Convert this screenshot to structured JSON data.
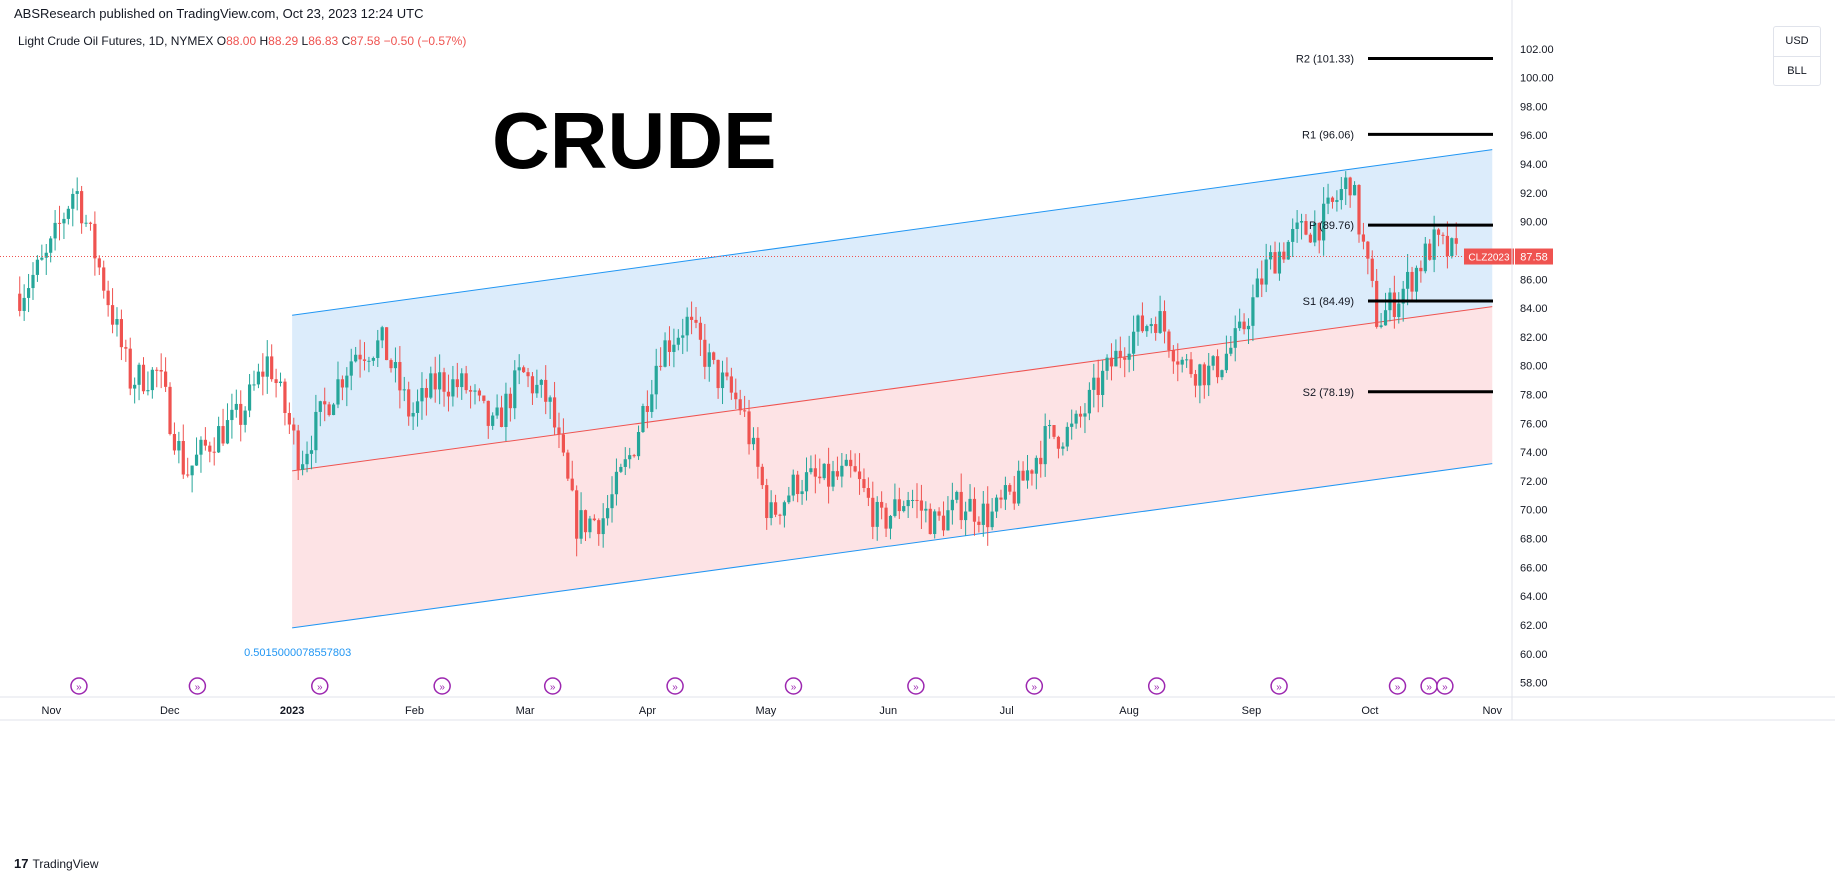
{
  "publisher_line": "ABSResearch published on TradingView.com, Oct 23, 2023 12:24 UTC",
  "symbol": {
    "name": "Light Crude Oil Futures, 1D, NYMEX",
    "o_label": "O",
    "o": "88.00",
    "h_label": "H",
    "h": "88.29",
    "l_label": "L",
    "l": "86.83",
    "c_label": "C",
    "c": "87.58",
    "change": "−0.50 (−0.57%)"
  },
  "units": {
    "currency": "USD",
    "unit": "BLL"
  },
  "footer": {
    "logo": "17",
    "brand": "TradingView"
  },
  "colors": {
    "up": "#26a69a",
    "down": "#ef5350",
    "channel_line": "#2196f3",
    "mid_line": "#ef5350",
    "upper_fill": "#dcecfb",
    "lower_fill": "#fde3e5",
    "event_icon": "#9c27b0",
    "pivot_line": "#000000"
  },
  "chart_data": {
    "type": "candlestick",
    "title": "CRUDE",
    "ylabel": "",
    "ylim": [
      57,
      104
    ],
    "y_ticks": [
      58,
      60,
      62,
      64,
      66,
      68,
      70,
      72,
      74,
      76,
      78,
      80,
      82,
      84,
      86,
      88,
      90,
      92,
      94,
      96,
      98,
      100,
      102
    ],
    "x_ticks": [
      "Nov",
      "Dec",
      "2023",
      "Feb",
      "Mar",
      "Apr",
      "May",
      "Jun",
      "Jul",
      "Aug",
      "Sep",
      "Oct",
      "Nov"
    ],
    "last_price": {
      "symbol": "CLZ2023",
      "value": "87.58"
    },
    "channel": {
      "start_label": "0.5015000078557803",
      "upper": [
        [
          "2023-01",
          83.5
        ],
        [
          "2023-11",
          95.0
        ]
      ],
      "middle": [
        [
          "2023-01",
          72.7
        ],
        [
          "2023-11",
          84.1
        ]
      ],
      "lower": [
        [
          "2023-01",
          61.8
        ],
        [
          "2023-11",
          73.2
        ]
      ]
    },
    "pivots": [
      {
        "label": "R2 (101.33)",
        "value": 101.33
      },
      {
        "label": "R1 (96.06)",
        "value": 96.06
      },
      {
        "label": "P (89.76)",
        "value": 89.76
      },
      {
        "label": "S1 (84.49)",
        "value": 84.49
      },
      {
        "label": "S2 (78.19)",
        "value": 78.19
      }
    ],
    "event_markers": [
      "Nov",
      "Dec",
      "Jan",
      "Feb",
      "Mar",
      "Apr",
      "May",
      "Jun",
      "Jul",
      "Aug",
      "Sep",
      "Oct",
      "Oct",
      "Oct"
    ],
    "close_path": [
      [
        "2022-10-24",
        85.0
      ],
      [
        "2022-10-31",
        87.5
      ],
      [
        "2022-11-07",
        92.5
      ],
      [
        "2022-11-14",
        86.0
      ],
      [
        "2022-11-21",
        79.0
      ],
      [
        "2022-11-28",
        79.5
      ],
      [
        "2022-12-05",
        72.5
      ],
      [
        "2022-12-12",
        75.0
      ],
      [
        "2022-12-19",
        76.5
      ],
      [
        "2022-12-26",
        80.5
      ],
      [
        "2023-01-03",
        73.5
      ],
      [
        "2023-01-10",
        77.5
      ],
      [
        "2023-01-17",
        81.0
      ],
      [
        "2023-01-24",
        81.5
      ],
      [
        "2023-01-31",
        76.5
      ],
      [
        "2023-02-07",
        79.0
      ],
      [
        "2023-02-14",
        78.5
      ],
      [
        "2023-02-21",
        75.5
      ],
      [
        "2023-02-28",
        79.5
      ],
      [
        "2023-03-07",
        77.5
      ],
      [
        "2023-03-14",
        69.0
      ],
      [
        "2023-03-21",
        69.5
      ],
      [
        "2023-03-28",
        74.0
      ],
      [
        "2023-04-04",
        81.0
      ],
      [
        "2023-04-11",
        83.0
      ],
      [
        "2023-04-18",
        79.5
      ],
      [
        "2023-04-25",
        77.0
      ],
      [
        "2023-05-02",
        69.5
      ],
      [
        "2023-05-09",
        72.0
      ],
      [
        "2023-05-16",
        72.0
      ],
      [
        "2023-05-23",
        72.5
      ],
      [
        "2023-05-30",
        69.0
      ],
      [
        "2023-06-06",
        71.0
      ],
      [
        "2023-06-13",
        69.0
      ],
      [
        "2023-06-20",
        70.5
      ],
      [
        "2023-06-27",
        69.5
      ],
      [
        "2023-07-04",
        71.5
      ],
      [
        "2023-07-11",
        75.0
      ],
      [
        "2023-07-18",
        75.5
      ],
      [
        "2023-07-25",
        79.0
      ],
      [
        "2023-08-01",
        82.0
      ],
      [
        "2023-08-08",
        83.5
      ],
      [
        "2023-08-15",
        80.0
      ],
      [
        "2023-08-22",
        79.5
      ],
      [
        "2023-08-29",
        82.0
      ],
      [
        "2023-09-05",
        87.0
      ],
      [
        "2023-09-12",
        89.0
      ],
      [
        "2023-09-19",
        90.0
      ],
      [
        "2023-09-26",
        93.0
      ],
      [
        "2023-10-03",
        83.0
      ],
      [
        "2023-10-10",
        85.5
      ],
      [
        "2023-10-17",
        88.5
      ],
      [
        "2023-10-23",
        87.58
      ]
    ]
  }
}
